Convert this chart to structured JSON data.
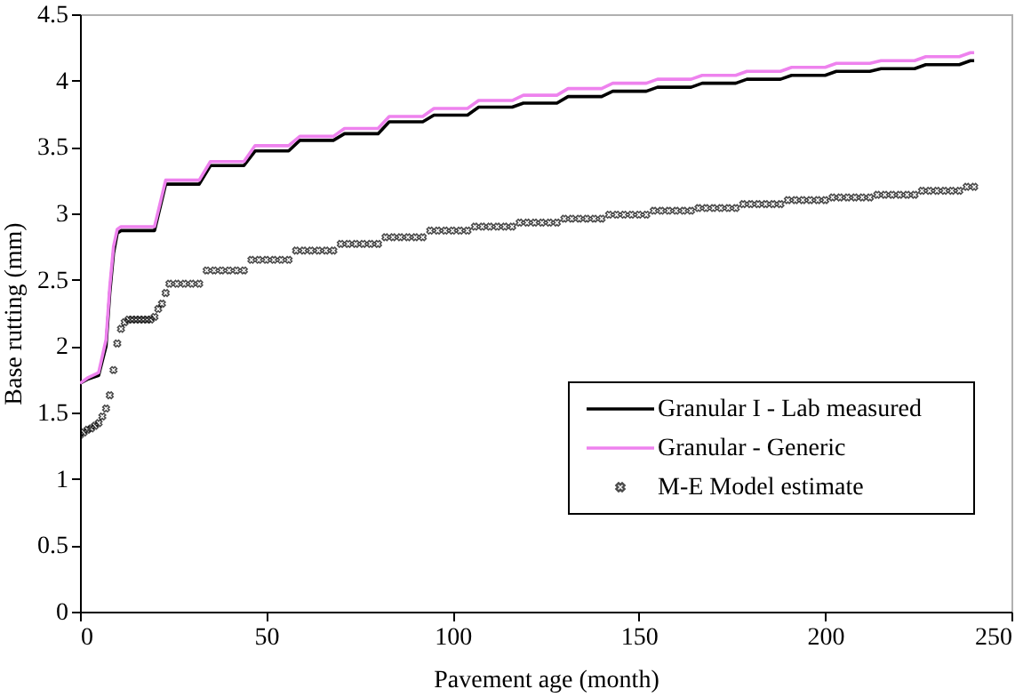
{
  "chart_data": {
    "type": "line",
    "xlabel": "Pavement age (month)",
    "ylabel": "Base rutting (mm)",
    "x": [
      0,
      2,
      5,
      7,
      8,
      9,
      10,
      11,
      20,
      23,
      32,
      35,
      44,
      47,
      56,
      59,
      68,
      71,
      80,
      83,
      92,
      95,
      104,
      107,
      116,
      119,
      128,
      131,
      140,
      143,
      152,
      155,
      164,
      167,
      176,
      179,
      188,
      191,
      200,
      203,
      212,
      215,
      224,
      227,
      236,
      239,
      240
    ],
    "series": [
      {
        "name": "Granular I - Lab measured",
        "color": "#000000",
        "values": [
          1.72,
          1.75,
          1.78,
          2.0,
          2.4,
          2.7,
          2.85,
          2.87,
          2.87,
          3.22,
          3.22,
          3.36,
          3.36,
          3.47,
          3.47,
          3.55,
          3.55,
          3.6,
          3.6,
          3.69,
          3.69,
          3.74,
          3.74,
          3.8,
          3.8,
          3.83,
          3.83,
          3.88,
          3.88,
          3.92,
          3.92,
          3.95,
          3.95,
          3.98,
          3.98,
          4.01,
          4.01,
          4.04,
          4.04,
          4.07,
          4.07,
          4.09,
          4.09,
          4.12,
          4.12,
          4.15,
          4.15
        ]
      },
      {
        "name": "Granular - Generic",
        "color": "#ee82ee",
        "values": [
          1.72,
          1.76,
          1.8,
          2.05,
          2.45,
          2.75,
          2.88,
          2.9,
          2.9,
          3.25,
          3.25,
          3.39,
          3.39,
          3.51,
          3.51,
          3.58,
          3.58,
          3.64,
          3.64,
          3.73,
          3.73,
          3.79,
          3.79,
          3.85,
          3.85,
          3.89,
          3.89,
          3.94,
          3.94,
          3.98,
          3.98,
          4.01,
          4.01,
          4.04,
          4.04,
          4.07,
          4.07,
          4.1,
          4.1,
          4.13,
          4.13,
          4.15,
          4.15,
          4.18,
          4.18,
          4.21,
          4.21
        ]
      },
      {
        "name": "M-E Model estimate",
        "color": "#000000",
        "type": "scatter",
        "marker": "cross",
        "x": [
          0,
          1,
          2,
          3,
          4,
          5,
          6,
          7,
          8,
          9,
          10,
          11,
          12,
          13,
          14,
          15,
          16,
          17,
          18,
          19,
          20,
          21,
          22,
          23,
          24,
          26,
          28,
          30,
          32,
          34,
          36,
          38,
          40,
          42,
          44,
          46,
          48,
          50,
          52,
          54,
          56,
          58,
          60,
          62,
          64,
          66,
          68,
          70,
          72,
          74,
          76,
          78,
          80,
          82,
          84,
          86,
          88,
          90,
          92,
          94,
          96,
          98,
          100,
          102,
          104,
          106,
          108,
          110,
          112,
          114,
          116,
          118,
          120,
          122,
          124,
          126,
          128,
          130,
          132,
          134,
          136,
          138,
          140,
          142,
          144,
          146,
          148,
          150,
          152,
          154,
          156,
          158,
          160,
          162,
          164,
          166,
          168,
          170,
          172,
          174,
          176,
          178,
          180,
          182,
          184,
          186,
          188,
          190,
          192,
          194,
          196,
          198,
          200,
          202,
          204,
          206,
          208,
          210,
          212,
          214,
          216,
          218,
          220,
          222,
          224,
          226,
          228,
          230,
          232,
          234,
          236,
          238,
          240
        ],
        "values": [
          1.33,
          1.35,
          1.37,
          1.38,
          1.4,
          1.42,
          1.47,
          1.53,
          1.63,
          1.82,
          2.02,
          2.13,
          2.18,
          2.2,
          2.2,
          2.2,
          2.2,
          2.2,
          2.2,
          2.2,
          2.22,
          2.28,
          2.32,
          2.4,
          2.47,
          2.47,
          2.47,
          2.47,
          2.47,
          2.57,
          2.57,
          2.57,
          2.57,
          2.57,
          2.57,
          2.65,
          2.65,
          2.65,
          2.65,
          2.65,
          2.65,
          2.72,
          2.72,
          2.72,
          2.72,
          2.72,
          2.72,
          2.77,
          2.77,
          2.77,
          2.77,
          2.77,
          2.77,
          2.82,
          2.82,
          2.82,
          2.82,
          2.82,
          2.82,
          2.87,
          2.87,
          2.87,
          2.87,
          2.87,
          2.87,
          2.9,
          2.9,
          2.9,
          2.9,
          2.9,
          2.9,
          2.93,
          2.93,
          2.93,
          2.93,
          2.93,
          2.93,
          2.96,
          2.96,
          2.96,
          2.96,
          2.96,
          2.96,
          2.99,
          2.99,
          2.99,
          2.99,
          2.99,
          2.99,
          3.02,
          3.02,
          3.02,
          3.02,
          3.02,
          3.02,
          3.04,
          3.04,
          3.04,
          3.04,
          3.04,
          3.04,
          3.07,
          3.07,
          3.07,
          3.07,
          3.07,
          3.07,
          3.1,
          3.1,
          3.1,
          3.1,
          3.1,
          3.1,
          3.12,
          3.12,
          3.12,
          3.12,
          3.12,
          3.12,
          3.14,
          3.14,
          3.14,
          3.14,
          3.14,
          3.14,
          3.17,
          3.17,
          3.17,
          3.17,
          3.17,
          3.17,
          3.2,
          3.2
        ]
      }
    ],
    "xlim": [
      0,
      250
    ],
    "xticks": [
      0,
      50,
      100,
      150,
      200,
      250
    ],
    "ylim": [
      0,
      4.5
    ],
    "yticks": [
      0,
      0.5,
      1,
      1.5,
      2,
      2.5,
      3,
      3.5,
      4,
      4.5
    ],
    "grid": false,
    "legend": "bottom right",
    "line_style": "solid"
  }
}
